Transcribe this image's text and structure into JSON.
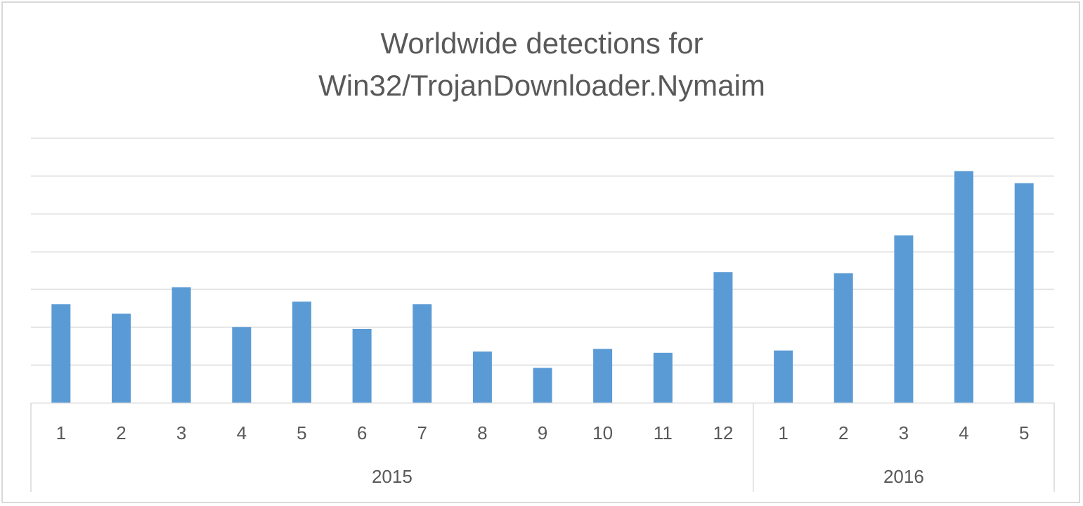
{
  "chart_data": {
    "type": "bar",
    "title": "Worldwide detections for Win32/TrojanDownloader.Nymaim",
    "title_lines": [
      "Worldwide detections for",
      "Win32/TrojanDownloader.Nymaim"
    ],
    "xlabel": "",
    "ylabel": "",
    "y_axis_labels_shown": false,
    "grid": true,
    "legend": "none",
    "groups": [
      {
        "label": "2015",
        "categories": [
          "1",
          "2",
          "3",
          "4",
          "5",
          "6",
          "7",
          "8",
          "9",
          "10",
          "11",
          "12"
        ]
      },
      {
        "label": "2016",
        "categories": [
          "1",
          "2",
          "3",
          "4",
          "5"
        ]
      }
    ],
    "categories": [
      "1",
      "2",
      "3",
      "4",
      "5",
      "6",
      "7",
      "8",
      "9",
      "10",
      "11",
      "12",
      "1",
      "2",
      "3",
      "4",
      "5"
    ],
    "values": [
      2.6,
      2.35,
      3.05,
      2.0,
      2.67,
      1.95,
      2.6,
      1.35,
      0.92,
      1.42,
      1.32,
      3.45,
      1.38,
      3.42,
      4.42,
      6.12,
      5.8
    ],
    "ylim": [
      0,
      7
    ],
    "y_gridline_step": 1,
    "bar_color": "#5b9bd5",
    "grid_color": "#d9d9d9",
    "text_color": "#595959"
  }
}
